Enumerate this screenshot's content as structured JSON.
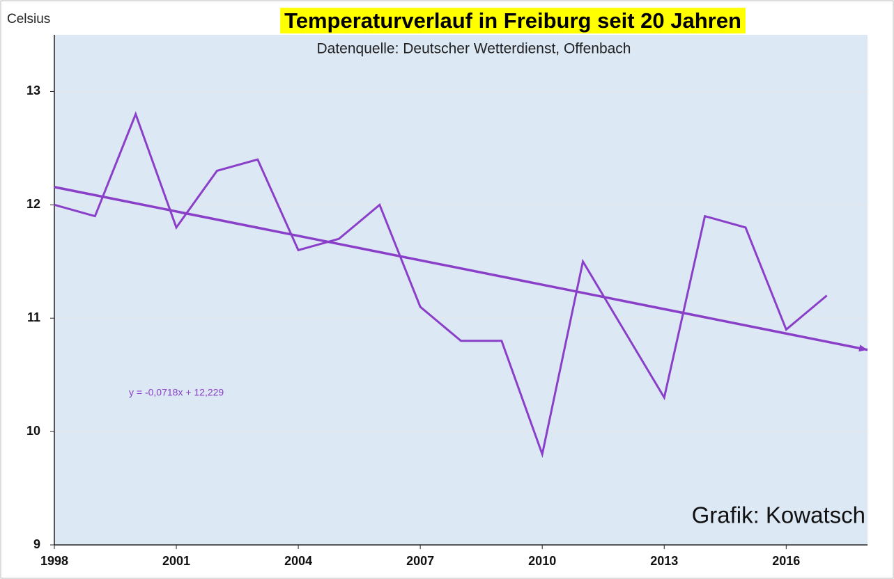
{
  "chart_data": {
    "type": "line",
    "title": "Temperaturverlauf in Freiburg seit 20 Jahren",
    "subtitle": "Datenquelle: Deutscher Wetterdienst, Offenbach",
    "y_label": "Celsius",
    "annotations": [
      "y = -0,0718x + 12,229",
      "Grafik: Kowatsch"
    ],
    "x": [
      1998,
      1999,
      2000,
      2001,
      2002,
      2003,
      2004,
      2005,
      2006,
      2007,
      2008,
      2009,
      2010,
      2011,
      2012,
      2013,
      2014,
      2015,
      2016,
      2017
    ],
    "series": [
      {
        "color": "#8a3fc8",
        "values": [
          12.0,
          11.9,
          12.8,
          11.8,
          12.3,
          12.4,
          11.6,
          11.7,
          12.0,
          11.1,
          10.8,
          10.8,
          9.8,
          11.5,
          10.9,
          10.3,
          11.9,
          11.8,
          10.9,
          11.2
        ]
      }
    ],
    "trendline": {
      "color": "#8a3fc8",
      "x": [
        1998,
        2018
      ],
      "values": [
        12.157,
        10.721
      ]
    },
    "xlim": [
      1998,
      2018
    ],
    "xticks": [
      1998,
      2001,
      2004,
      2007,
      2010,
      2013,
      2016
    ],
    "ylim": [
      9,
      13.5
    ],
    "yticks": [
      9,
      10,
      11,
      12,
      13
    ],
    "grid": true,
    "plot_background": "#dde8f5",
    "title_background": "#ffff00"
  }
}
